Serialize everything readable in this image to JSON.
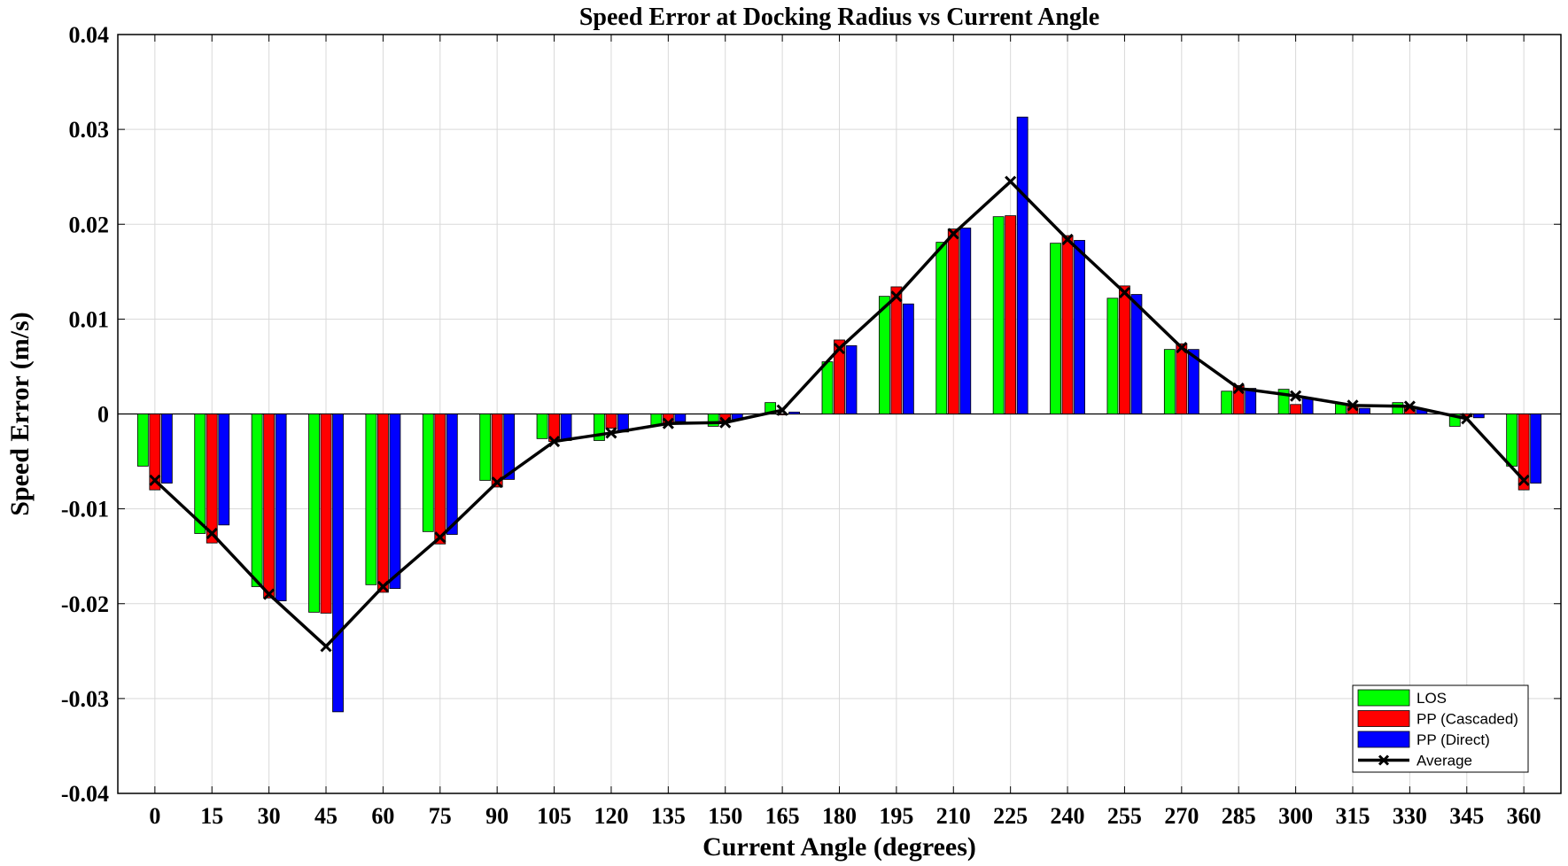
{
  "chart_data": {
    "type": "bar",
    "title": "Speed Error at Docking Radius vs Current Angle",
    "xlabel": "Current Angle (degrees)",
    "ylabel": "Speed Error (m/s)",
    "ylim": [
      -0.04,
      0.04
    ],
    "yticks": [
      "-0.04",
      "-0.03",
      "-0.02",
      "-0.01",
      "0",
      "0.01",
      "0.02",
      "0.03",
      "0.04"
    ],
    "categories": [
      "0",
      "15",
      "30",
      "45",
      "60",
      "75",
      "90",
      "105",
      "120",
      "135",
      "150",
      "165",
      "180",
      "195",
      "210",
      "225",
      "240",
      "255",
      "270",
      "285",
      "300",
      "315",
      "330",
      "345",
      "360"
    ],
    "grid": true,
    "legend_position": "bottom-right",
    "series": [
      {
        "name": "LOS",
        "kind": "bar",
        "color": "#00ff00",
        "values": [
          -0.0055,
          -0.0126,
          -0.0182,
          -0.0209,
          -0.018,
          -0.0124,
          -0.007,
          -0.0026,
          -0.0028,
          -0.0012,
          -0.0013,
          0.0012,
          0.0055,
          0.0124,
          0.0181,
          0.0208,
          0.018,
          0.0122,
          0.0068,
          0.0024,
          0.0026,
          0.0011,
          0.0012,
          -0.0013,
          -0.0055
        ]
      },
      {
        "name": "PP (Cascaded)",
        "kind": "bar",
        "color": "#ff0000",
        "values": [
          -0.008,
          -0.0136,
          -0.0194,
          -0.021,
          -0.0188,
          -0.0137,
          -0.0077,
          -0.0029,
          -0.0015,
          -0.001,
          -0.0008,
          -0.0001,
          0.0078,
          0.0134,
          0.0195,
          0.0209,
          0.0188,
          0.0135,
          0.0074,
          0.003,
          0.001,
          0.0008,
          0.0007,
          -0.0003,
          -0.008
        ]
      },
      {
        "name": "PP (Direct)",
        "kind": "bar",
        "color": "#0000ff",
        "values": [
          -0.0073,
          -0.0117,
          -0.0197,
          -0.0314,
          -0.0184,
          -0.0127,
          -0.0069,
          -0.0028,
          -0.0019,
          -0.0008,
          -0.0006,
          0.0002,
          0.0072,
          0.0116,
          0.0196,
          0.0313,
          0.0183,
          0.0126,
          0.0068,
          0.0027,
          0.0017,
          0.0006,
          0.0005,
          -0.0004,
          -0.0073
        ]
      },
      {
        "name": "Average",
        "kind": "line",
        "color": "#000000",
        "values": [
          -0.007,
          -0.0126,
          -0.019,
          -0.0245,
          -0.0182,
          -0.013,
          -0.0072,
          -0.0029,
          -0.002,
          -0.001,
          -0.0009,
          0.0004,
          0.0069,
          0.0124,
          0.019,
          0.0245,
          0.0184,
          0.0128,
          0.007,
          0.0027,
          0.0019,
          0.0009,
          0.0008,
          -0.0005,
          -0.007
        ]
      }
    ]
  }
}
